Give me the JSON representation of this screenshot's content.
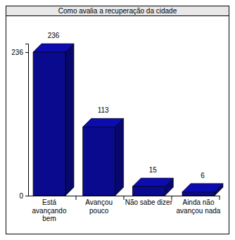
{
  "chart_data": {
    "type": "bar",
    "title": "Como avalia a recuperação da cidade",
    "categories": [
      "Está avançando bem",
      "Avançou pouco",
      "Não sabe dizer",
      "Ainda não avançou nada"
    ],
    "values": [
      236,
      113,
      15,
      6
    ],
    "color": "#0a0a8f",
    "ylim": [
      0,
      250
    ],
    "yticks": [
      0,
      236
    ],
    "grid": false,
    "data_labels": true
  }
}
